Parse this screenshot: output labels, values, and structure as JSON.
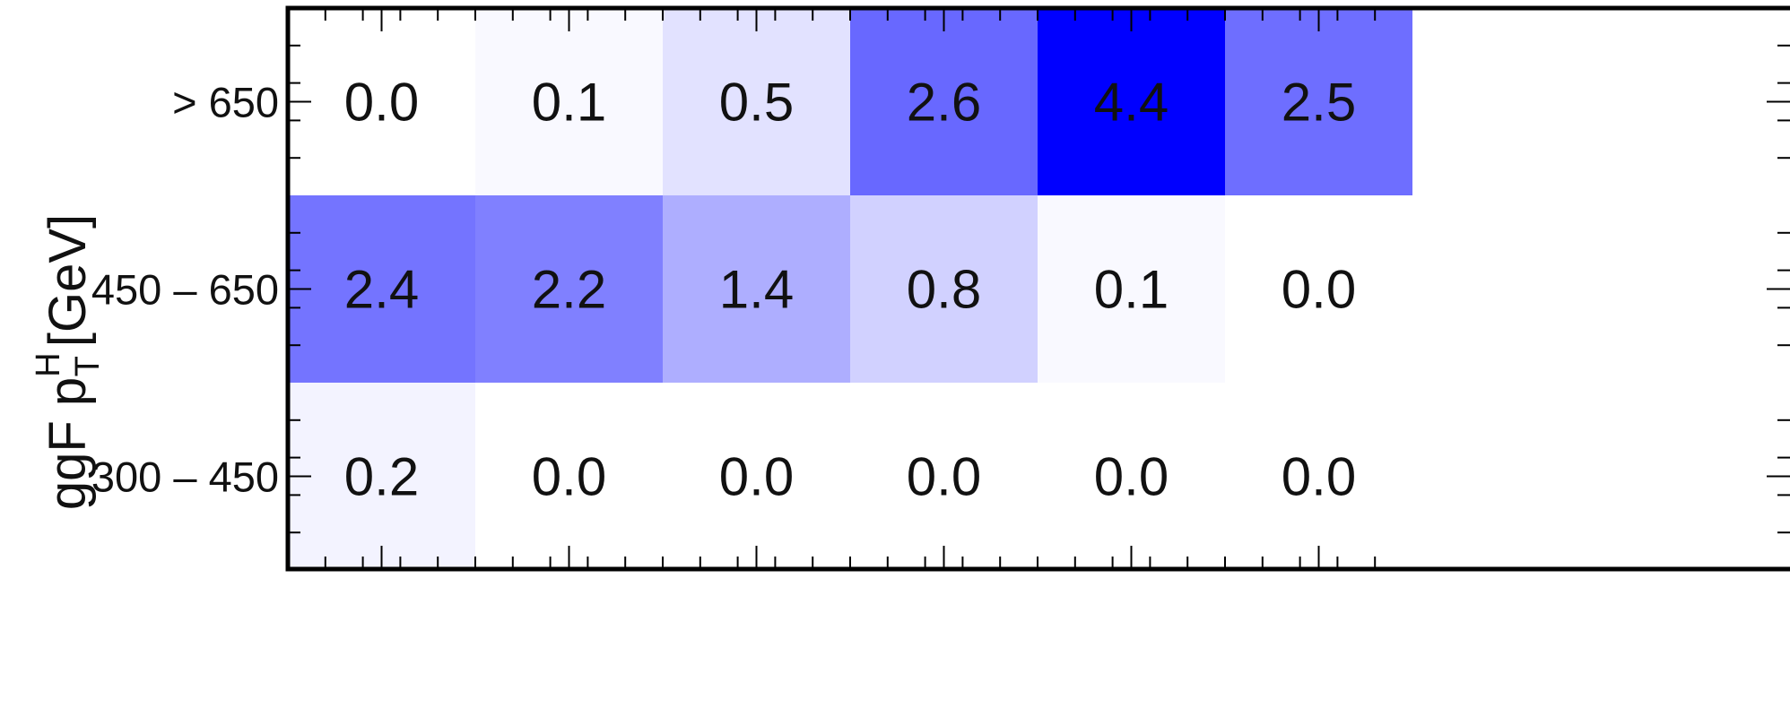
{
  "chart_data": {
    "type": "heatmap",
    "title": "",
    "xlabel": "",
    "ylabel": {
      "text": "ggF p",
      "superscript": "H",
      "subscript": "T",
      "unit": "[GeV]"
    },
    "x_categories": [
      "",
      "",
      "",
      "",
      "",
      ""
    ],
    "y_categories": [
      "> 650",
      "450 – 650",
      "300 – 450"
    ],
    "values": [
      [
        0.0,
        0.1,
        0.5,
        2.6,
        4.4,
        2.5
      ],
      [
        2.4,
        2.2,
        1.4,
        0.8,
        0.1,
        0.0
      ],
      [
        0.2,
        0.0,
        0.0,
        0.0,
        0.0,
        0.0
      ]
    ],
    "value_labels": [
      [
        "0.0",
        "0.1",
        "0.5",
        "2.6",
        "4.4",
        "2.5"
      ],
      [
        "2.4",
        "2.2",
        "1.4",
        "0.8",
        "0.1",
        "0.0"
      ],
      [
        "0.2",
        "0.0",
        "0.0",
        "0.0",
        "0.0",
        "0.0"
      ]
    ],
    "color_scale": {
      "min": 0.0,
      "max": 4.4,
      "low_color": "#ffffff",
      "high_color": "#0000ff"
    },
    "grid": false,
    "legend": "none"
  }
}
